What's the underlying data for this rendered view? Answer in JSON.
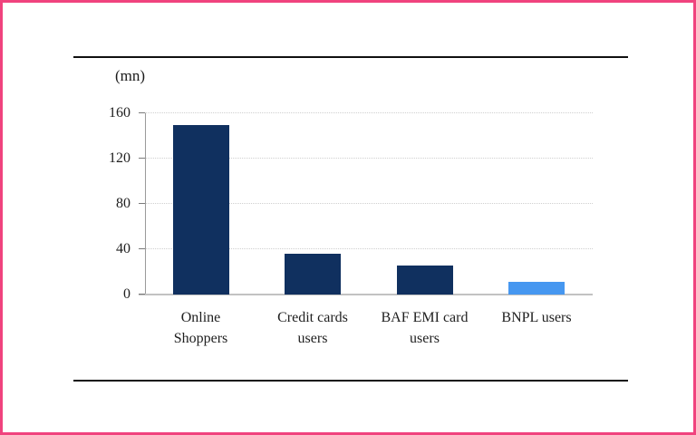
{
  "window": {
    "background": "#ffffff",
    "frame_border_color": "#f0437e",
    "rule_color": "#101010"
  },
  "chart_data": {
    "type": "bar",
    "title": "",
    "unit_label": "(mn)",
    "categories": [
      "Online Shoppers",
      "Credit cards users",
      "BAF EMI card users",
      "BNPL users"
    ],
    "category_display": [
      "Online\nShoppers",
      "Credit cards\nusers",
      "BAF EMI card\nusers",
      "BNPL users"
    ],
    "values": [
      150,
      36,
      26,
      11
    ],
    "bar_colors": [
      "#10305f",
      "#10305f",
      "#10305f",
      "#4697f0"
    ],
    "yticks": [
      0,
      40,
      80,
      120,
      160
    ],
    "ylim": [
      0,
      160
    ],
    "xlabel": "",
    "ylabel": "",
    "grid": "horizontal-dotted",
    "legend": "none"
  }
}
